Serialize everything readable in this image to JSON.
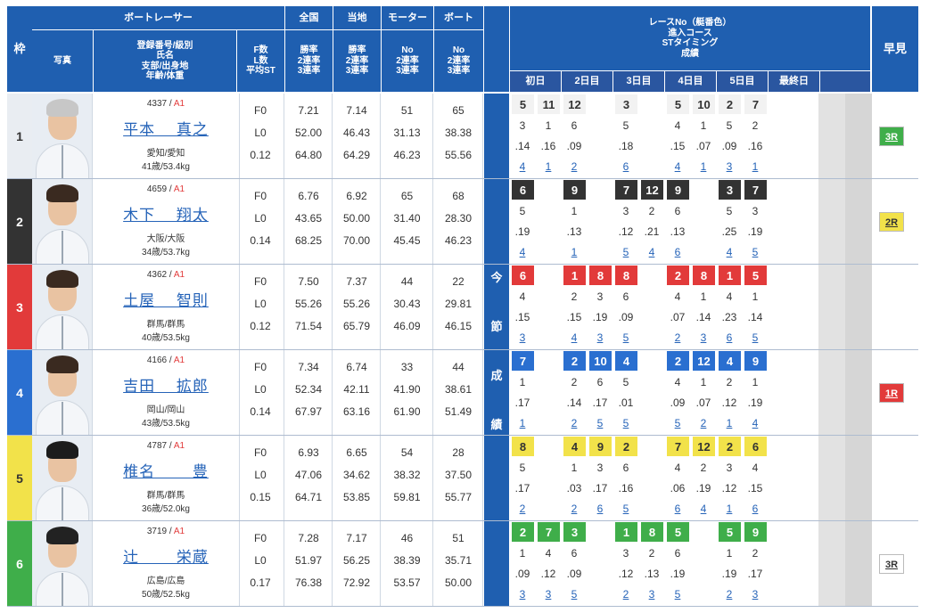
{
  "headers": {
    "frame": "枠",
    "racer": "ボートレーサー",
    "photo": "写真",
    "reg_info": "登録番号/級別\n氏名\n支部/出身地\n年齢/体重",
    "fl": "F数\nL数\n平均ST",
    "national": "全国",
    "local": "当地",
    "motor": "モーター",
    "boat": "ボート",
    "rates": "勝率\n2連率\n3連率",
    "motor_sub": "No\n2連率\n3連率",
    "boat_sub": "No\n2連率\n3連率",
    "race_info": "レースNo（艇番色）\n進入コース\nSTタイミング\n成績",
    "early": "早見",
    "days": [
      "初日",
      "2日目",
      "3日目",
      "4日目",
      "5日目",
      "最終日"
    ],
    "konsetsu": [
      "今",
      "節",
      "成",
      "績"
    ]
  },
  "colors": {
    "1": "#ffffff",
    "2": "#333333",
    "3": "#e23a3a",
    "4": "#2a6fd0",
    "5": "#f2e24a",
    "6": "#3fae4a"
  },
  "racers": [
    {
      "frame": "1",
      "reg": "4337",
      "cls": "A1",
      "name": "平本　 真之",
      "branch": "愛知/愛知",
      "age": "41歳/53.4kg",
      "f": "F0",
      "l": "L0",
      "st": "0.12",
      "nat": [
        "7.21",
        "52.00",
        "64.80"
      ],
      "loc": [
        "7.14",
        "46.43",
        "64.29"
      ],
      "motor": [
        "51",
        "31.13",
        "46.23"
      ],
      "boat": [
        "65",
        "38.38",
        "55.56"
      ],
      "early": "3R",
      "early_color": "#3fae4a",
      "races": [
        [
          [
            "5",
            "3",
            ".14",
            "4"
          ],
          [
            "11",
            "1",
            ".16",
            "1"
          ]
        ],
        [
          [
            "12",
            "6",
            ".09",
            "2"
          ]
        ],
        [
          [
            "3",
            "5",
            ".18",
            "6"
          ]
        ],
        [
          [
            "5",
            "4",
            ".15",
            "4"
          ],
          [
            "10",
            "1",
            ".07",
            "1"
          ]
        ],
        [
          [
            "2",
            "5",
            ".09",
            "3"
          ],
          [
            "7",
            "2",
            ".16",
            "1"
          ]
        ],
        []
      ]
    },
    {
      "frame": "2",
      "reg": "4659",
      "cls": "A1",
      "name": "木下　 翔太",
      "branch": "大阪/大阪",
      "age": "34歳/53.7kg",
      "f": "F0",
      "l": "L0",
      "st": "0.14",
      "nat": [
        "6.76",
        "43.65",
        "68.25"
      ],
      "loc": [
        "6.92",
        "50.00",
        "70.00"
      ],
      "motor": [
        "65",
        "31.40",
        "45.45"
      ],
      "boat": [
        "68",
        "28.30",
        "46.23"
      ],
      "early": "2R",
      "early_color": "#f2e24a",
      "races": [
        [
          [
            "6",
            "5",
            ".19",
            "4"
          ]
        ],
        [
          [
            "9",
            "1",
            ".13",
            "1"
          ]
        ],
        [
          [
            "7",
            "3",
            ".12",
            "5"
          ],
          [
            "12",
            "2",
            ".21",
            "4"
          ]
        ],
        [
          [
            "9",
            "6",
            ".13",
            "6"
          ]
        ],
        [
          [
            "3",
            "5",
            ".25",
            "4"
          ],
          [
            "7",
            "3",
            ".19",
            "5"
          ]
        ],
        []
      ]
    },
    {
      "frame": "3",
      "reg": "4362",
      "cls": "A1",
      "name": "土屋　 智則",
      "branch": "群馬/群馬",
      "age": "40歳/53.5kg",
      "f": "F0",
      "l": "L0",
      "st": "0.12",
      "nat": [
        "7.50",
        "55.26",
        "71.54"
      ],
      "loc": [
        "7.37",
        "55.26",
        "65.79"
      ],
      "motor": [
        "44",
        "30.43",
        "46.09"
      ],
      "boat": [
        "22",
        "29.81",
        "46.15"
      ],
      "early": "",
      "early_color": "",
      "races": [
        [
          [
            "6",
            "4",
            ".15",
            "3"
          ]
        ],
        [
          [
            "1",
            "2",
            ".15",
            "4"
          ],
          [
            "8",
            "3",
            ".19",
            "3"
          ]
        ],
        [
          [
            "8",
            "6",
            ".09",
            "5"
          ]
        ],
        [
          [
            "2",
            "4",
            ".07",
            "2"
          ],
          [
            "8",
            "1",
            ".14",
            "3"
          ]
        ],
        [
          [
            "1",
            "4",
            ".23",
            "6"
          ],
          [
            "5",
            "1",
            ".14",
            "5"
          ]
        ],
        []
      ]
    },
    {
      "frame": "4",
      "reg": "4166",
      "cls": "A1",
      "name": "吉田　 拡郎",
      "branch": "岡山/岡山",
      "age": "43歳/53.5kg",
      "f": "F0",
      "l": "L0",
      "st": "0.14",
      "nat": [
        "7.34",
        "52.34",
        "67.97"
      ],
      "loc": [
        "6.74",
        "42.11",
        "63.16"
      ],
      "motor": [
        "33",
        "41.90",
        "61.90"
      ],
      "boat": [
        "44",
        "38.61",
        "51.49"
      ],
      "early": "1R",
      "early_color": "#e23a3a",
      "races": [
        [
          [
            "7",
            "1",
            ".17",
            "1"
          ]
        ],
        [
          [
            "2",
            "2",
            ".14",
            "2"
          ],
          [
            "10",
            "6",
            ".17",
            "5"
          ]
        ],
        [
          [
            "4",
            "5",
            ".01",
            "5"
          ]
        ],
        [
          [
            "2",
            "4",
            ".09",
            "5"
          ],
          [
            "12",
            "1",
            ".07",
            "2"
          ]
        ],
        [
          [
            "4",
            "2",
            ".12",
            "1"
          ],
          [
            "9",
            "1",
            ".19",
            "4"
          ]
        ],
        []
      ]
    },
    {
      "frame": "5",
      "reg": "4787",
      "cls": "A1",
      "name": "椎名　　 豊",
      "branch": "群馬/群馬",
      "age": "36歳/52.0kg",
      "f": "F0",
      "l": "L0",
      "st": "0.15",
      "nat": [
        "6.93",
        "47.06",
        "64.71"
      ],
      "loc": [
        "6.65",
        "34.62",
        "53.85"
      ],
      "motor": [
        "54",
        "38.32",
        "59.81"
      ],
      "boat": [
        "28",
        "37.50",
        "55.77"
      ],
      "early": "",
      "early_color": "",
      "races": [
        [
          [
            "8",
            "5",
            ".17",
            "2"
          ]
        ],
        [
          [
            "4",
            "1",
            ".03",
            "2"
          ],
          [
            "9",
            "3",
            ".17",
            "6"
          ]
        ],
        [
          [
            "2",
            "6",
            ".16",
            "5"
          ]
        ],
        [
          [
            "7",
            "4",
            ".06",
            "6"
          ],
          [
            "12",
            "2",
            ".19",
            "4"
          ]
        ],
        [
          [
            "2",
            "3",
            ".12",
            "1"
          ],
          [
            "6",
            "4",
            ".15",
            "6"
          ]
        ],
        []
      ]
    },
    {
      "frame": "6",
      "reg": "3719",
      "cls": "A1",
      "name": "辻　　 栄蔵",
      "branch": "広島/広島",
      "age": "50歳/52.5kg",
      "f": "F0",
      "l": "L0",
      "st": "0.17",
      "nat": [
        "7.28",
        "51.97",
        "76.38"
      ],
      "loc": [
        "7.17",
        "56.25",
        "72.92"
      ],
      "motor": [
        "46",
        "38.39",
        "53.57"
      ],
      "boat": [
        "51",
        "35.71",
        "50.00"
      ],
      "early": "3R",
      "early_color": "#ffffff",
      "races": [
        [
          [
            "2",
            "1",
            ".09",
            "3"
          ],
          [
            "7",
            "4",
            ".12",
            "3"
          ]
        ],
        [
          [
            "3",
            "6",
            ".09",
            "5"
          ]
        ],
        [
          [
            "1",
            "3",
            ".12",
            "2"
          ],
          [
            "8",
            "2",
            ".13",
            "3"
          ]
        ],
        [
          [
            "5",
            "6",
            ".19",
            "5"
          ]
        ],
        [
          [
            "5",
            "1",
            ".19",
            "2"
          ],
          [
            "9",
            "2",
            ".17",
            "3"
          ]
        ],
        []
      ]
    }
  ]
}
